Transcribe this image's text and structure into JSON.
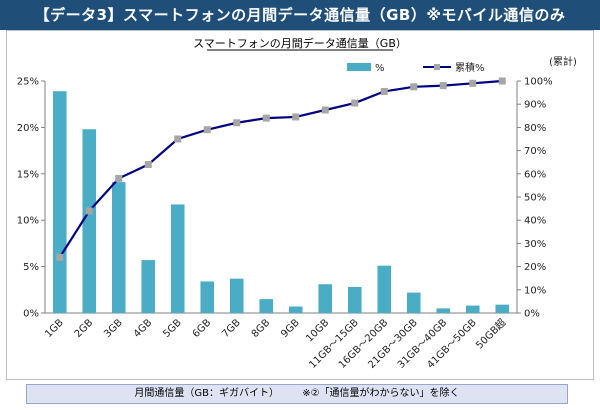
{
  "header": {
    "title": "【データ3】スマートフォンの月間データ通信量（GB）※モバイル通信のみ"
  },
  "footer": {
    "xlabel": "月間通信量（GB：ギガバイト）",
    "note": "※②「通信量がわからない」を除く"
  },
  "colors": {
    "header_bg": "#1f4e79",
    "bar": "#4bacc6",
    "line": "#000080",
    "marker": "#a6a6a6"
  },
  "chart_data": {
    "type": "bar",
    "title": "スマートフォンの月間データ通信量（GB）",
    "categories": [
      "1GB",
      "2GB",
      "3GB",
      "4GB",
      "5GB",
      "6GB",
      "7GB",
      "8GB",
      "9GB",
      "10GB",
      "11GB～15GB",
      "16GB～20GB",
      "21GB～30GB",
      "31GB～40GB",
      "41GB～50GB",
      "50GB超"
    ],
    "series": [
      {
        "name": "%",
        "type": "bar",
        "axis": "left",
        "values": [
          23.9,
          19.8,
          14.1,
          5.7,
          11.7,
          3.4,
          3.7,
          1.5,
          0.7,
          3.1,
          2.8,
          5.1,
          2.2,
          0.5,
          0.8,
          0.9
        ]
      },
      {
        "name": "累積%",
        "type": "line",
        "axis": "right",
        "values": [
          24,
          44,
          58,
          64,
          75,
          79,
          82,
          84,
          84.5,
          87.5,
          90.5,
          95.5,
          97.5,
          98,
          99,
          100
        ]
      }
    ],
    "y_left": {
      "range": [
        0,
        25
      ],
      "ticks": [
        0,
        5,
        10,
        15,
        20,
        25
      ],
      "tick_labels": [
        "0%",
        "5%",
        "10%",
        "15%",
        "20%",
        "25%"
      ]
    },
    "y_right": {
      "label": "(累計)",
      "range": [
        0,
        100
      ],
      "ticks": [
        0,
        10,
        20,
        30,
        40,
        50,
        60,
        70,
        80,
        90,
        100
      ],
      "tick_labels": [
        "0%",
        "10%",
        "20%",
        "30%",
        "40%",
        "50%",
        "60%",
        "70%",
        "80%",
        "90%",
        "100%"
      ]
    },
    "grid": false,
    "legend": "top-right"
  }
}
